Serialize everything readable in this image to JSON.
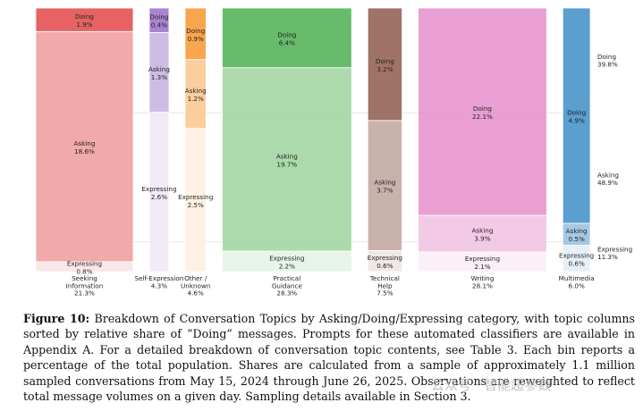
{
  "chart_data": {
    "type": "marimekko",
    "y_stack_order": [
      "Expressing",
      "Asking",
      "Doing"
    ],
    "right_labels": [
      {
        "category": "Doing",
        "share": "39.8%"
      },
      {
        "category": "Asking",
        "share": "48.9%"
      },
      {
        "category": "Expressing",
        "share": "11.3%"
      }
    ],
    "columns": [
      {
        "name": "Seeking Information",
        "lines": [
          "Seeking",
          "Information",
          "21.3%"
        ],
        "width": 21.3,
        "color": "#e34848",
        "segments": {
          "Doing": 1.9,
          "Asking": 18.6,
          "Expressing": 0.8
        },
        "labels": {
          "Doing": "1.9%",
          "Asking": "18.6%",
          "Expressing": "0.8%"
        }
      },
      {
        "name": "Self-Expression",
        "lines": [
          "Self-Expression",
          "4.3%"
        ],
        "width": 4.3,
        "color": "#9a6fc9",
        "segments": {
          "Doing": 0.4,
          "Asking": 1.3,
          "Expressing": 2.6
        },
        "labels": {
          "Doing": "0.4%",
          "Asking": "1.3%",
          "Expressing": "2.6%"
        }
      },
      {
        "name": "Other / Unknown",
        "lines": [
          "Other /",
          "Unknown",
          "4.6%"
        ],
        "width": 4.6,
        "color": "#f7962e",
        "segments": {
          "Doing": 0.9,
          "Asking": 1.2,
          "Expressing": 2.5
        },
        "labels": {
          "Doing": "0.9%",
          "Asking": "1.2%",
          "Expressing": "2.5%"
        }
      },
      {
        "name": "Practical Guidance",
        "lines": [
          "Practical",
          "Guidance",
          "28.3%"
        ],
        "width": 28.3,
        "color": "#4caf50",
        "segments": {
          "Doing": 6.4,
          "Asking": 19.7,
          "Expressing": 2.2
        },
        "labels": {
          "Doing": "6.4%",
          "Asking": "19.7%",
          "Expressing": "2.2%"
        }
      },
      {
        "name": "Technical Help",
        "lines": [
          "Technical",
          "Help",
          "7.5%"
        ],
        "width": 7.5,
        "color": "#8e5a4e",
        "segments": {
          "Doing": 3.2,
          "Asking": 3.7,
          "Expressing": 0.6
        },
        "labels": {
          "Doing": "3.2%",
          "Asking": "3.7%",
          "Expressing": "0.6%"
        }
      },
      {
        "name": "Writing",
        "lines": [
          "Writing",
          "28.1%"
        ],
        "width": 28.1,
        "color": "#e58ecb",
        "segments": {
          "Doing": 22.1,
          "Asking": 3.9,
          "Expressing": 2.1
        },
        "labels": {
          "Doing": "22.1%",
          "Asking": "3.9%",
          "Expressing": "2.1%"
        }
      },
      {
        "name": "Multimedia",
        "lines": [
          "Multimedia",
          "6.0%"
        ],
        "width": 6.0,
        "color": "#3e8dc8",
        "segments": {
          "Doing": 4.9,
          "Asking": 0.5,
          "Expressing": 0.6
        },
        "labels": {
          "Doing": "4.9%",
          "Asking": "0.5%",
          "Expressing": "0.6%"
        }
      }
    ],
    "grid": true
  },
  "caption": {
    "label": "Figure 10:",
    "text": "Breakdown of Conversation Topics by Asking/Doing/Expressing category, with topic columns sorted by relative share of ”Doing” messages. Prompts for these automated classifiers are available in Appendix A. For a detailed breakdown of conversation topic contents, see Table 3. Each bin reports a percentage of the total population. Shares are calculated from a sample of approximately 1.1 million sampled conversations from May 15, 2024 through June 26, 2025. Observations are reweighted to reflect total message volumes on a given day. Sampling details available in Section 3."
  },
  "watermark": "公众号 · 智能超参数"
}
